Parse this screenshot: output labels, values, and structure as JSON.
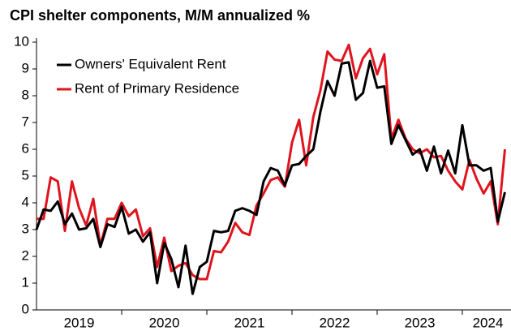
{
  "chart_data": {
    "type": "line",
    "title": "CPI shelter components, M/M annualized %",
    "x": [
      2019.0,
      2019.0833,
      2019.1667,
      2019.25,
      2019.3333,
      2019.4167,
      2019.5,
      2019.5833,
      2019.6667,
      2019.75,
      2019.8333,
      2019.9167,
      2020.0,
      2020.0833,
      2020.1667,
      2020.25,
      2020.3333,
      2020.4167,
      2020.5,
      2020.5833,
      2020.6667,
      2020.75,
      2020.8333,
      2020.9167,
      2021.0,
      2021.0833,
      2021.1667,
      2021.25,
      2021.3333,
      2021.4167,
      2021.5,
      2021.5833,
      2021.6667,
      2021.75,
      2021.8333,
      2021.9167,
      2022.0,
      2022.0833,
      2022.1667,
      2022.25,
      2022.3333,
      2022.4167,
      2022.5,
      2022.5833,
      2022.6667,
      2022.75,
      2022.8333,
      2022.9167,
      2023.0,
      2023.0833,
      2023.1667,
      2023.25,
      2023.3333,
      2023.4167,
      2023.5,
      2023.5833,
      2023.6667,
      2023.75,
      2023.8333,
      2023.9167,
      2024.0,
      2024.0833,
      2024.1667,
      2024.25,
      2024.3333,
      2024.4167,
      2024.5
    ],
    "series": [
      {
        "name": "Owners' Equivalent Rent",
        "color": "#000000",
        "values": [
          3.0,
          3.75,
          3.7,
          4.05,
          3.2,
          3.6,
          3.0,
          3.05,
          3.4,
          2.35,
          3.2,
          3.1,
          3.85,
          2.85,
          3.0,
          2.55,
          2.9,
          1.0,
          2.5,
          1.9,
          0.85,
          2.4,
          0.6,
          1.6,
          1.8,
          2.95,
          2.9,
          2.95,
          3.7,
          3.8,
          3.7,
          3.55,
          4.8,
          5.3,
          5.2,
          4.65,
          5.4,
          5.45,
          5.75,
          6.0,
          7.4,
          8.55,
          8.0,
          9.2,
          9.25,
          7.85,
          8.1,
          9.3,
          8.3,
          8.35,
          6.2,
          6.9,
          6.35,
          5.8,
          6.0,
          5.2,
          6.1,
          5.1,
          5.95,
          5.1,
          6.9,
          5.4,
          5.4,
          5.2,
          5.3,
          3.3,
          4.4
        ]
      },
      {
        "name": "Rent of Primary Residence",
        "color": "#e0141e",
        "values": [
          3.4,
          3.4,
          4.95,
          4.8,
          2.95,
          4.8,
          3.8,
          3.15,
          4.15,
          2.4,
          3.4,
          3.4,
          4.0,
          3.5,
          3.75,
          2.75,
          3.05,
          1.6,
          2.7,
          1.45,
          1.65,
          1.75,
          1.3,
          1.15,
          1.15,
          2.2,
          2.15,
          2.55,
          3.25,
          2.9,
          2.8,
          3.9,
          4.35,
          4.85,
          4.95,
          4.6,
          6.25,
          7.1,
          5.4,
          7.2,
          8.2,
          9.65,
          9.35,
          9.3,
          9.9,
          8.65,
          9.4,
          9.75,
          8.8,
          9.55,
          6.4,
          7.1,
          6.4,
          6.0,
          5.85,
          6.0,
          5.7,
          5.75,
          5.2,
          4.8,
          4.5,
          5.6,
          4.9,
          4.35,
          4.8,
          3.2,
          6.0
        ]
      }
    ],
    "xlim": [
      2019.0,
      2024.6
    ],
    "xticks": [
      {
        "value": 2019.5,
        "label": "2019"
      },
      {
        "value": 2020.5,
        "label": "2020"
      },
      {
        "value": 2021.5,
        "label": "2021"
      },
      {
        "value": 2022.5,
        "label": "2022"
      },
      {
        "value": 2023.5,
        "label": "2023"
      },
      {
        "value": 2024.3,
        "label": "2024"
      }
    ],
    "year_boundaries": [
      2020,
      2021,
      2022,
      2023,
      2024
    ],
    "ylim": [
      0,
      10
    ],
    "yticks": [
      0,
      1,
      2,
      3,
      4,
      5,
      6,
      7,
      8,
      9,
      10
    ],
    "legend": "upper left"
  }
}
